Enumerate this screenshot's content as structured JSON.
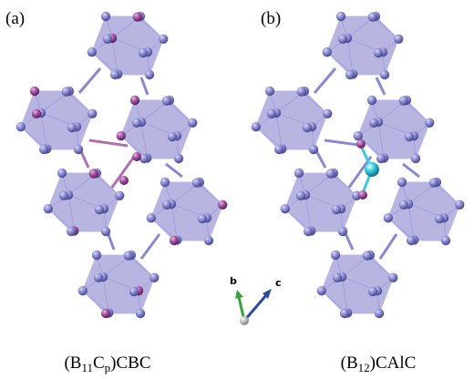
{
  "panels": [
    {
      "label": "(a)",
      "caption": [
        "(B",
        "11",
        "C",
        "p",
        ")CBC"
      ]
    },
    {
      "label": "(b)",
      "caption": [
        "(B",
        "12",
        ")CAlC"
      ]
    }
  ],
  "axes": {
    "b": "b",
    "c": "c"
  }
}
